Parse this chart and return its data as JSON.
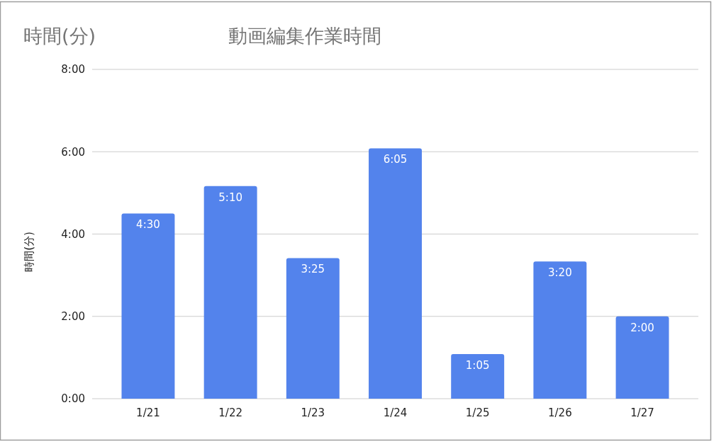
{
  "chart_data": {
    "type": "bar",
    "title": "動画編集作業時間",
    "ylabel": "時間(分)",
    "annotations": [
      "時間(分)"
    ],
    "categories": [
      "1/21",
      "1/22",
      "1/23",
      "1/24",
      "1/25",
      "1/26",
      "1/27"
    ],
    "values": [
      4.5,
      5.1667,
      3.4167,
      6.0833,
      1.0833,
      3.3333,
      2
    ],
    "value_labels": [
      "4:30",
      "5:10",
      "3:25",
      "6:05",
      "1:05",
      "3:20",
      "2:00"
    ],
    "color": "#5383ec",
    "ylim": [
      0,
      8
    ],
    "yticks": [
      {
        "value": 0,
        "label": "0:00"
      },
      {
        "value": 2,
        "label": "2:00"
      },
      {
        "value": 4,
        "label": "4:00"
      },
      {
        "value": 6,
        "label": "6:00"
      },
      {
        "value": 8,
        "label": "8:00"
      }
    ],
    "grid": "y"
  }
}
